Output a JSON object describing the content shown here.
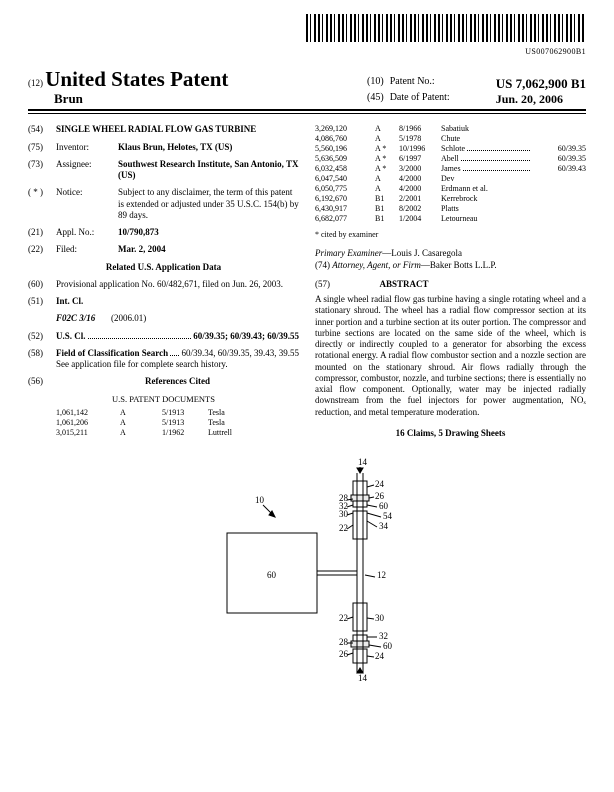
{
  "barcode_num": "US007062900B1",
  "header": {
    "code": "(12)",
    "country": "United States Patent",
    "author": "Brun",
    "pat_no_code": "(10)",
    "pat_no_label": "Patent No.:",
    "pat_no_value": "US 7,062,900 B1",
    "date_code": "(45)",
    "date_label": "Date of Patent:",
    "date_value": "Jun. 20, 2006"
  },
  "left": {
    "title_code": "(54)",
    "title": "SINGLE WHEEL RADIAL FLOW GAS TURBINE",
    "inventor_code": "(75)",
    "inventor_label": "Inventor:",
    "inventor_value": "Klaus Brun, Helotes, TX (US)",
    "assignee_code": "(73)",
    "assignee_label": "Assignee:",
    "assignee_value": "Southwest Research Institute, San Antonio, TX (US)",
    "notice_code": "( * )",
    "notice_label": "Notice:",
    "notice_value": "Subject to any disclaimer, the term of this patent is extended or adjusted under 35 U.S.C. 154(b) by 89 days.",
    "appl_code": "(21)",
    "appl_label": "Appl. No.:",
    "appl_value": "10/790,873",
    "filed_code": "(22)",
    "filed_label": "Filed:",
    "filed_value": "Mar. 2, 2004",
    "related_head": "Related U.S. Application Data",
    "prov_code": "(60)",
    "prov_value": "Provisional application No. 60/482,671, filed on Jun. 26, 2003.",
    "intcl_code": "(51)",
    "intcl_label": "Int. Cl.",
    "intcl_class": "F02C 3/16",
    "intcl_year": "(2006.01)",
    "uscl_code": "(52)",
    "uscl_label": "U.S. Cl.",
    "uscl_value": "60/39.35; 60/39.43; 60/39.55",
    "focs_code": "(58)",
    "focs_label": "Field of Classification Search",
    "focs_value": "60/39.34, 60/39.35, 39.43, 39.55",
    "focs_note": "See application file for complete search history.",
    "refs_code": "(56)",
    "refs_head": "References Cited",
    "refs_sub": "U.S. PATENT DOCUMENTS",
    "refs": [
      {
        "no": "1,061,142",
        "t": "A",
        "d": "5/1913",
        "n": "Tesla"
      },
      {
        "no": "1,061,206",
        "t": "A",
        "d": "5/1913",
        "n": "Tesla"
      },
      {
        "no": "3,015,211",
        "t": "A",
        "d": "1/1962",
        "n": "Luttrell"
      }
    ]
  },
  "right": {
    "cites": [
      {
        "no": "3,269,120",
        "t": "A",
        "ex": "",
        "d": "8/1966",
        "n": "Sabatiuk",
        "cl": ""
      },
      {
        "no": "4,086,760",
        "t": "A",
        "ex": "",
        "d": "5/1978",
        "n": "Chute",
        "cl": ""
      },
      {
        "no": "5,560,196",
        "t": "A",
        "ex": "*",
        "d": "10/1996",
        "n": "Schlote",
        "cl": "60/39.35"
      },
      {
        "no": "5,636,509",
        "t": "A",
        "ex": "*",
        "d": "6/1997",
        "n": "Abell",
        "cl": "60/39.35"
      },
      {
        "no": "6,032,458",
        "t": "A",
        "ex": "*",
        "d": "3/2000",
        "n": "James",
        "cl": "60/39.43"
      },
      {
        "no": "6,047,540",
        "t": "A",
        "ex": "",
        "d": "4/2000",
        "n": "Dev",
        "cl": ""
      },
      {
        "no": "6,050,775",
        "t": "A",
        "ex": "",
        "d": "4/2000",
        "n": "Erdmann et al.",
        "cl": ""
      },
      {
        "no": "6,192,670",
        "t": "B1",
        "ex": "",
        "d": "2/2001",
        "n": "Kerrebrock",
        "cl": ""
      },
      {
        "no": "6,430,917",
        "t": "B1",
        "ex": "",
        "d": "8/2002",
        "n": "Platts",
        "cl": ""
      },
      {
        "no": "6,682,077",
        "t": "B1",
        "ex": "",
        "d": "1/2004",
        "n": "Letourneau",
        "cl": ""
      }
    ],
    "cited_note": "* cited by examiner",
    "examiner_label": "Primary Examiner",
    "examiner_value": "—Louis J. Casaregola",
    "attorney_code": "(74)",
    "attorney_label": "Attorney, Agent, or Firm",
    "attorney_value": "—Baker Botts L.L.P.",
    "abstract_code": "(57)",
    "abstract_head": "ABSTRACT",
    "abstract": "A single wheel radial flow gas turbine having a single rotating wheel and a stationary shroud. The wheel has a radial flow compressor section at its inner portion and a turbine section at its outer portion. The compressor and turbine sections are located on the same side of the wheel, which is directly or indirectly coupled to a generator for absorbing the excess rotational energy. A radial flow combustor section and a nozzle section are mounted on the stationary shroud. Air flows radially through the compressor, combustor, nozzle, and turbine sections; there is essentially no axial flow component. Optionally, water may be injected radially downstream from the fuel injectors for power augmentation, NOₓ reduction, and metal temperature moderation.",
    "claims": "16 Claims, 5 Drawing Sheets"
  },
  "figure": {
    "labels": [
      "10",
      "14",
      "14",
      "12",
      "60",
      "22",
      "22",
      "24",
      "24",
      "26",
      "26",
      "28",
      "28",
      "30",
      "30",
      "32",
      "34",
      "54",
      "60",
      "60"
    ]
  }
}
